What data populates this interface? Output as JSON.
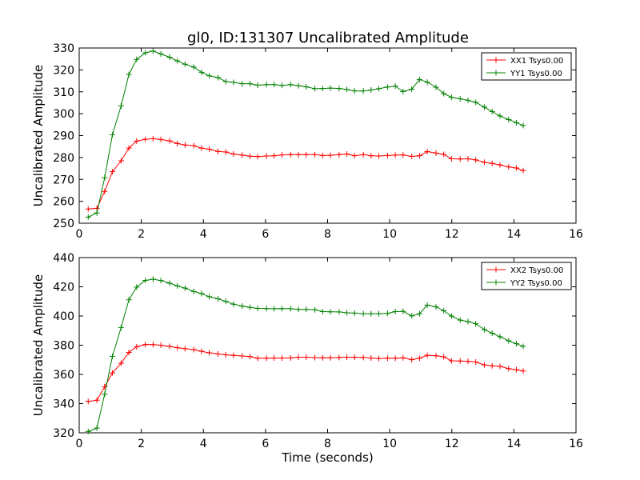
{
  "figure": {
    "title": "gl0, ID:131307 Uncalibrated Amplitude",
    "xlabel": "Time (seconds)"
  },
  "chart_data": [
    {
      "type": "line",
      "title": "gl0, ID:131307 Uncalibrated Amplitude",
      "xlabel": "",
      "ylabel": "Uncalibrated Amplitude",
      "xlim": [
        0,
        16
      ],
      "ylim": [
        250,
        330
      ],
      "xticks": [
        0,
        2,
        4,
        6,
        8,
        10,
        12,
        14,
        16
      ],
      "yticks": [
        250,
        260,
        270,
        280,
        290,
        300,
        310,
        320,
        330
      ],
      "grid": false,
      "legend_position": "top-right",
      "x": [
        0.29,
        0.57,
        0.82,
        1.07,
        1.35,
        1.6,
        1.85,
        2.13,
        2.38,
        2.63,
        2.91,
        3.16,
        3.41,
        3.69,
        3.94,
        4.19,
        4.47,
        4.72,
        4.97,
        5.25,
        5.5,
        5.75,
        6.03,
        6.28,
        6.53,
        6.81,
        7.06,
        7.31,
        7.59,
        7.84,
        8.09,
        8.37,
        8.62,
        8.87,
        9.15,
        9.4,
        9.65,
        9.93,
        10.18,
        10.43,
        10.71,
        10.96,
        11.21,
        11.49,
        11.74,
        11.99,
        12.27,
        12.52,
        12.77,
        13.05,
        13.3,
        13.55,
        13.83,
        14.08,
        14.3
      ],
      "series": [
        {
          "name": "XX1 Tsys0.00",
          "color": "#ff0000",
          "values": [
            256.5,
            256.8,
            264.5,
            273.5,
            278.5,
            284.3,
            287.5,
            288.3,
            288.6,
            288.2,
            287.6,
            286.4,
            285.7,
            285.4,
            284.3,
            283.8,
            282.8,
            282.5,
            281.6,
            281.1,
            280.6,
            280.4,
            280.7,
            280.8,
            281.2,
            281.3,
            281.3,
            281.3,
            281.3,
            280.9,
            281.0,
            281.3,
            281.6,
            280.8,
            281.3,
            280.8,
            280.7,
            280.9,
            281.1,
            281.2,
            280.5,
            280.8,
            282.7,
            282.0,
            281.4,
            279.4,
            279.3,
            279.4,
            278.9,
            277.8,
            277.3,
            276.6,
            275.7,
            275.2,
            274.0
          ]
        },
        {
          "name": "YY1 Tsys0.00",
          "color": "#008000",
          "values": [
            252.8,
            254.7,
            270.8,
            290.4,
            303.6,
            317.9,
            324.8,
            327.8,
            328.6,
            327.3,
            325.8,
            324.1,
            322.6,
            321.3,
            318.9,
            317.3,
            316.5,
            314.7,
            314.3,
            313.7,
            313.7,
            313.0,
            313.3,
            313.3,
            312.9,
            313.3,
            312.8,
            312.3,
            311.4,
            311.5,
            311.7,
            311.5,
            311.1,
            310.4,
            310.4,
            310.8,
            311.4,
            312.2,
            312.6,
            310.1,
            311.2,
            315.6,
            314.4,
            312.1,
            309.2,
            307.5,
            306.8,
            306.1,
            305.2,
            303.0,
            301.0,
            299.0,
            297.3,
            295.9,
            294.6
          ]
        }
      ]
    },
    {
      "type": "line",
      "title": "",
      "xlabel": "Time (seconds)",
      "ylabel": "Uncalibrated Amplitude",
      "xlim": [
        0,
        16
      ],
      "ylim": [
        320,
        440
      ],
      "xticks": [
        0,
        2,
        4,
        6,
        8,
        10,
        12,
        14,
        16
      ],
      "yticks": [
        320,
        340,
        360,
        380,
        400,
        420,
        440
      ],
      "grid": false,
      "legend_position": "top-right",
      "x": [
        0.29,
        0.57,
        0.82,
        1.07,
        1.35,
        1.6,
        1.85,
        2.13,
        2.38,
        2.63,
        2.91,
        3.16,
        3.41,
        3.69,
        3.94,
        4.19,
        4.47,
        4.72,
        4.97,
        5.25,
        5.5,
        5.75,
        6.03,
        6.28,
        6.53,
        6.81,
        7.06,
        7.31,
        7.59,
        7.84,
        8.09,
        8.37,
        8.62,
        8.87,
        9.15,
        9.4,
        9.65,
        9.93,
        10.18,
        10.43,
        10.71,
        10.96,
        11.21,
        11.49,
        11.74,
        11.99,
        12.27,
        12.52,
        12.77,
        13.05,
        13.3,
        13.55,
        13.83,
        14.08,
        14.3
      ],
      "series": [
        {
          "name": "XX2 Tsys0.00",
          "color": "#ff0000",
          "values": [
            341.5,
            342.3,
            351.5,
            361.0,
            367.7,
            375.1,
            378.9,
            380.5,
            380.4,
            380.0,
            379.2,
            378.3,
            377.6,
            377.0,
            375.8,
            374.8,
            374.0,
            373.4,
            373.0,
            372.6,
            372.2,
            371.0,
            371.1,
            371.2,
            371.2,
            371.3,
            371.8,
            371.8,
            371.5,
            371.4,
            371.4,
            371.6,
            371.8,
            371.7,
            371.6,
            371.2,
            370.9,
            371.1,
            371.0,
            371.4,
            370.1,
            371.1,
            373.1,
            372.8,
            372.0,
            369.3,
            369.2,
            369.0,
            368.5,
            366.5,
            365.9,
            365.5,
            364.0,
            363.2,
            362.3
          ]
        },
        {
          "name": "YY2 Tsys0.00",
          "color": "#008000",
          "values": [
            320.9,
            323.2,
            346.4,
            372.4,
            392.1,
            411.1,
            419.8,
            424.4,
            425.2,
            424.3,
            422.5,
            420.6,
            419.1,
            416.8,
            415.4,
            413.2,
            411.8,
            410.0,
            408.1,
            406.8,
            405.9,
            405.2,
            405.1,
            405.0,
            405.1,
            405.0,
            404.5,
            404.5,
            404.3,
            403.0,
            402.9,
            402.8,
            402.2,
            402.0,
            401.6,
            401.6,
            401.6,
            401.8,
            403.0,
            403.2,
            400.1,
            401.5,
            407.5,
            406.2,
            403.6,
            399.9,
            397.2,
            396.2,
            394.7,
            390.7,
            388.2,
            385.8,
            383.0,
            381.0,
            379.2
          ]
        }
      ]
    }
  ]
}
